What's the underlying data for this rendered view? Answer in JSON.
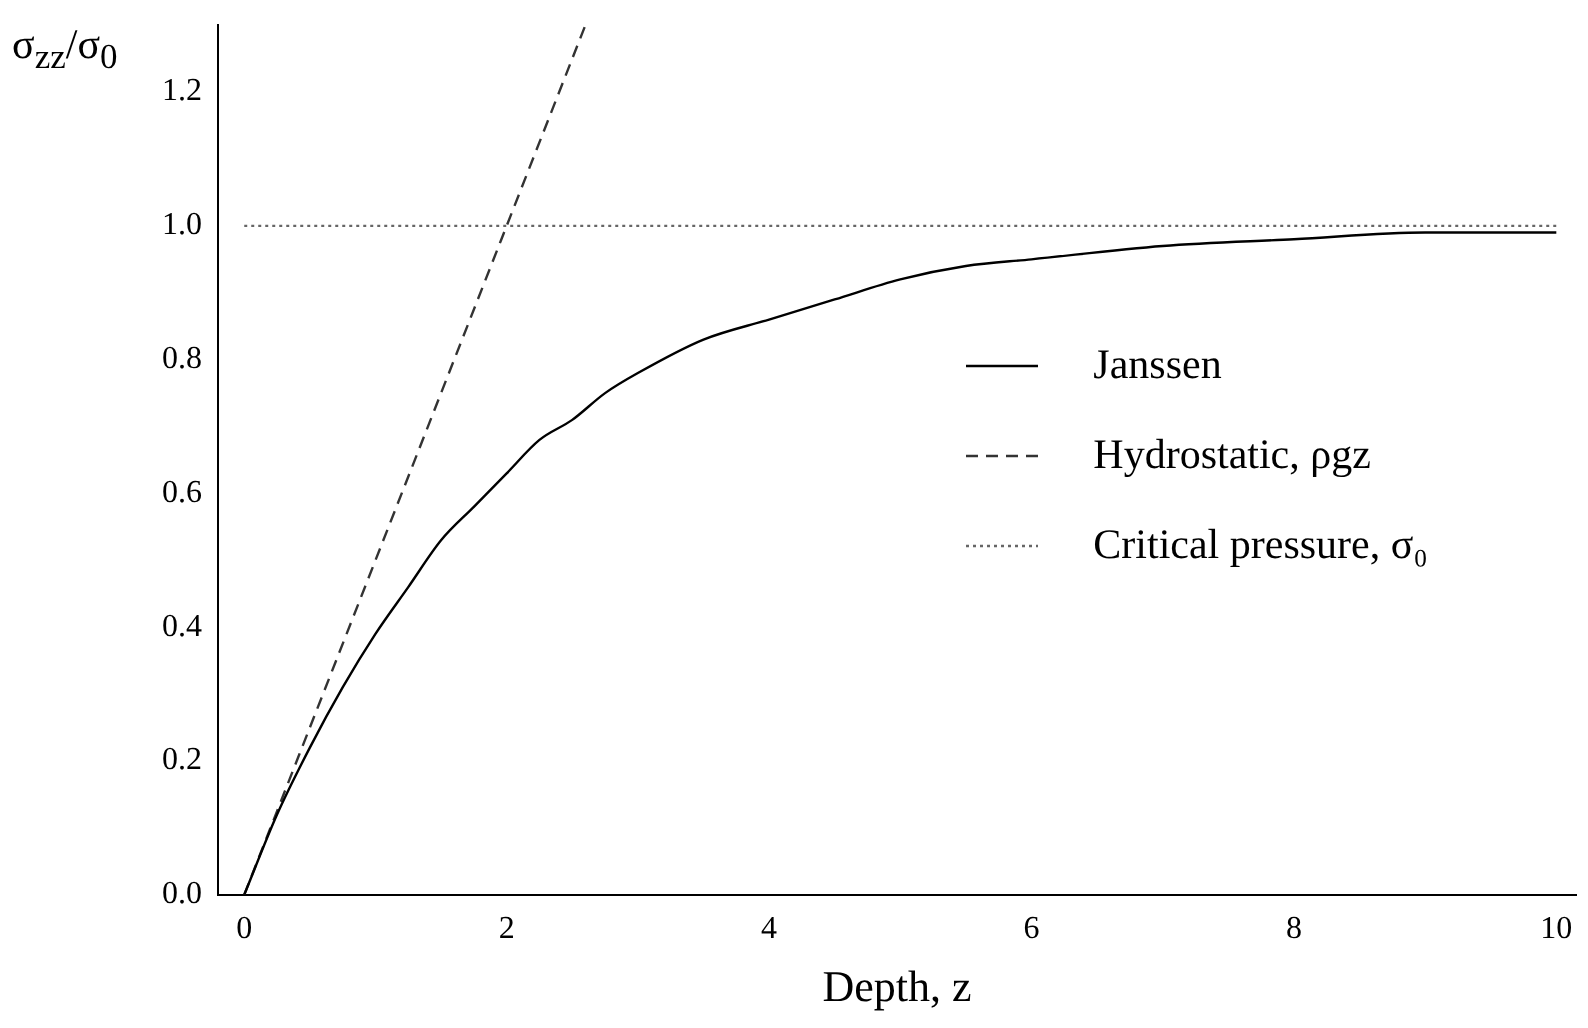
{
  "chart_data": {
    "type": "line",
    "xlabel": "Depth, z",
    "ylabel": "σ$_{zz}$/σ$_{0}$",
    "xlim": [
      -0.2,
      10.15
    ],
    "ylim": [
      0,
      1.3
    ],
    "xticks": [
      0,
      2,
      4,
      6,
      8,
      10
    ],
    "yticks": [
      {
        "value": 0,
        "label": "0.0"
      },
      {
        "value": 0.2,
        "label": "0.2"
      },
      {
        "value": 0.4,
        "label": "0.4"
      },
      {
        "value": 0.6,
        "label": "0.6"
      },
      {
        "value": 0.8,
        "label": "0.8"
      },
      {
        "value": 1,
        "label": "1.0"
      },
      {
        "value": 1.2,
        "label": "1.2"
      }
    ],
    "grid": false,
    "legend": "right",
    "marker": "none",
    "series": [
      {
        "name": "Janssen",
        "color": "#000000",
        "line_style": "solid",
        "x": [
          0,
          0.25,
          0.5,
          0.75,
          1,
          1.25,
          1.5,
          1.75,
          2,
          2.25,
          2.5,
          2.75,
          3,
          3.5,
          4,
          4.5,
          5,
          5.5,
          6,
          7,
          8,
          9,
          10
        ],
        "values": [
          0,
          0.12,
          0.22,
          0.31,
          0.39,
          0.46,
          0.53,
          0.58,
          0.63,
          0.68,
          0.71,
          0.75,
          0.78,
          0.83,
          0.86,
          0.89,
          0.92,
          0.94,
          0.95,
          0.97,
          0.98,
          0.99,
          0.99
        ]
      },
      {
        "name": "Hydrostatic, ρgz",
        "color": "#333333",
        "line_style": "dashed",
        "x": [
          0,
          2.6
        ],
        "values": [
          0,
          1.3
        ]
      },
      {
        "name": "Critical pressure, σ₀",
        "color": "#666666",
        "line_style": "dotted",
        "x": [
          0,
          10
        ],
        "values": [
          1,
          1
        ]
      }
    ]
  }
}
